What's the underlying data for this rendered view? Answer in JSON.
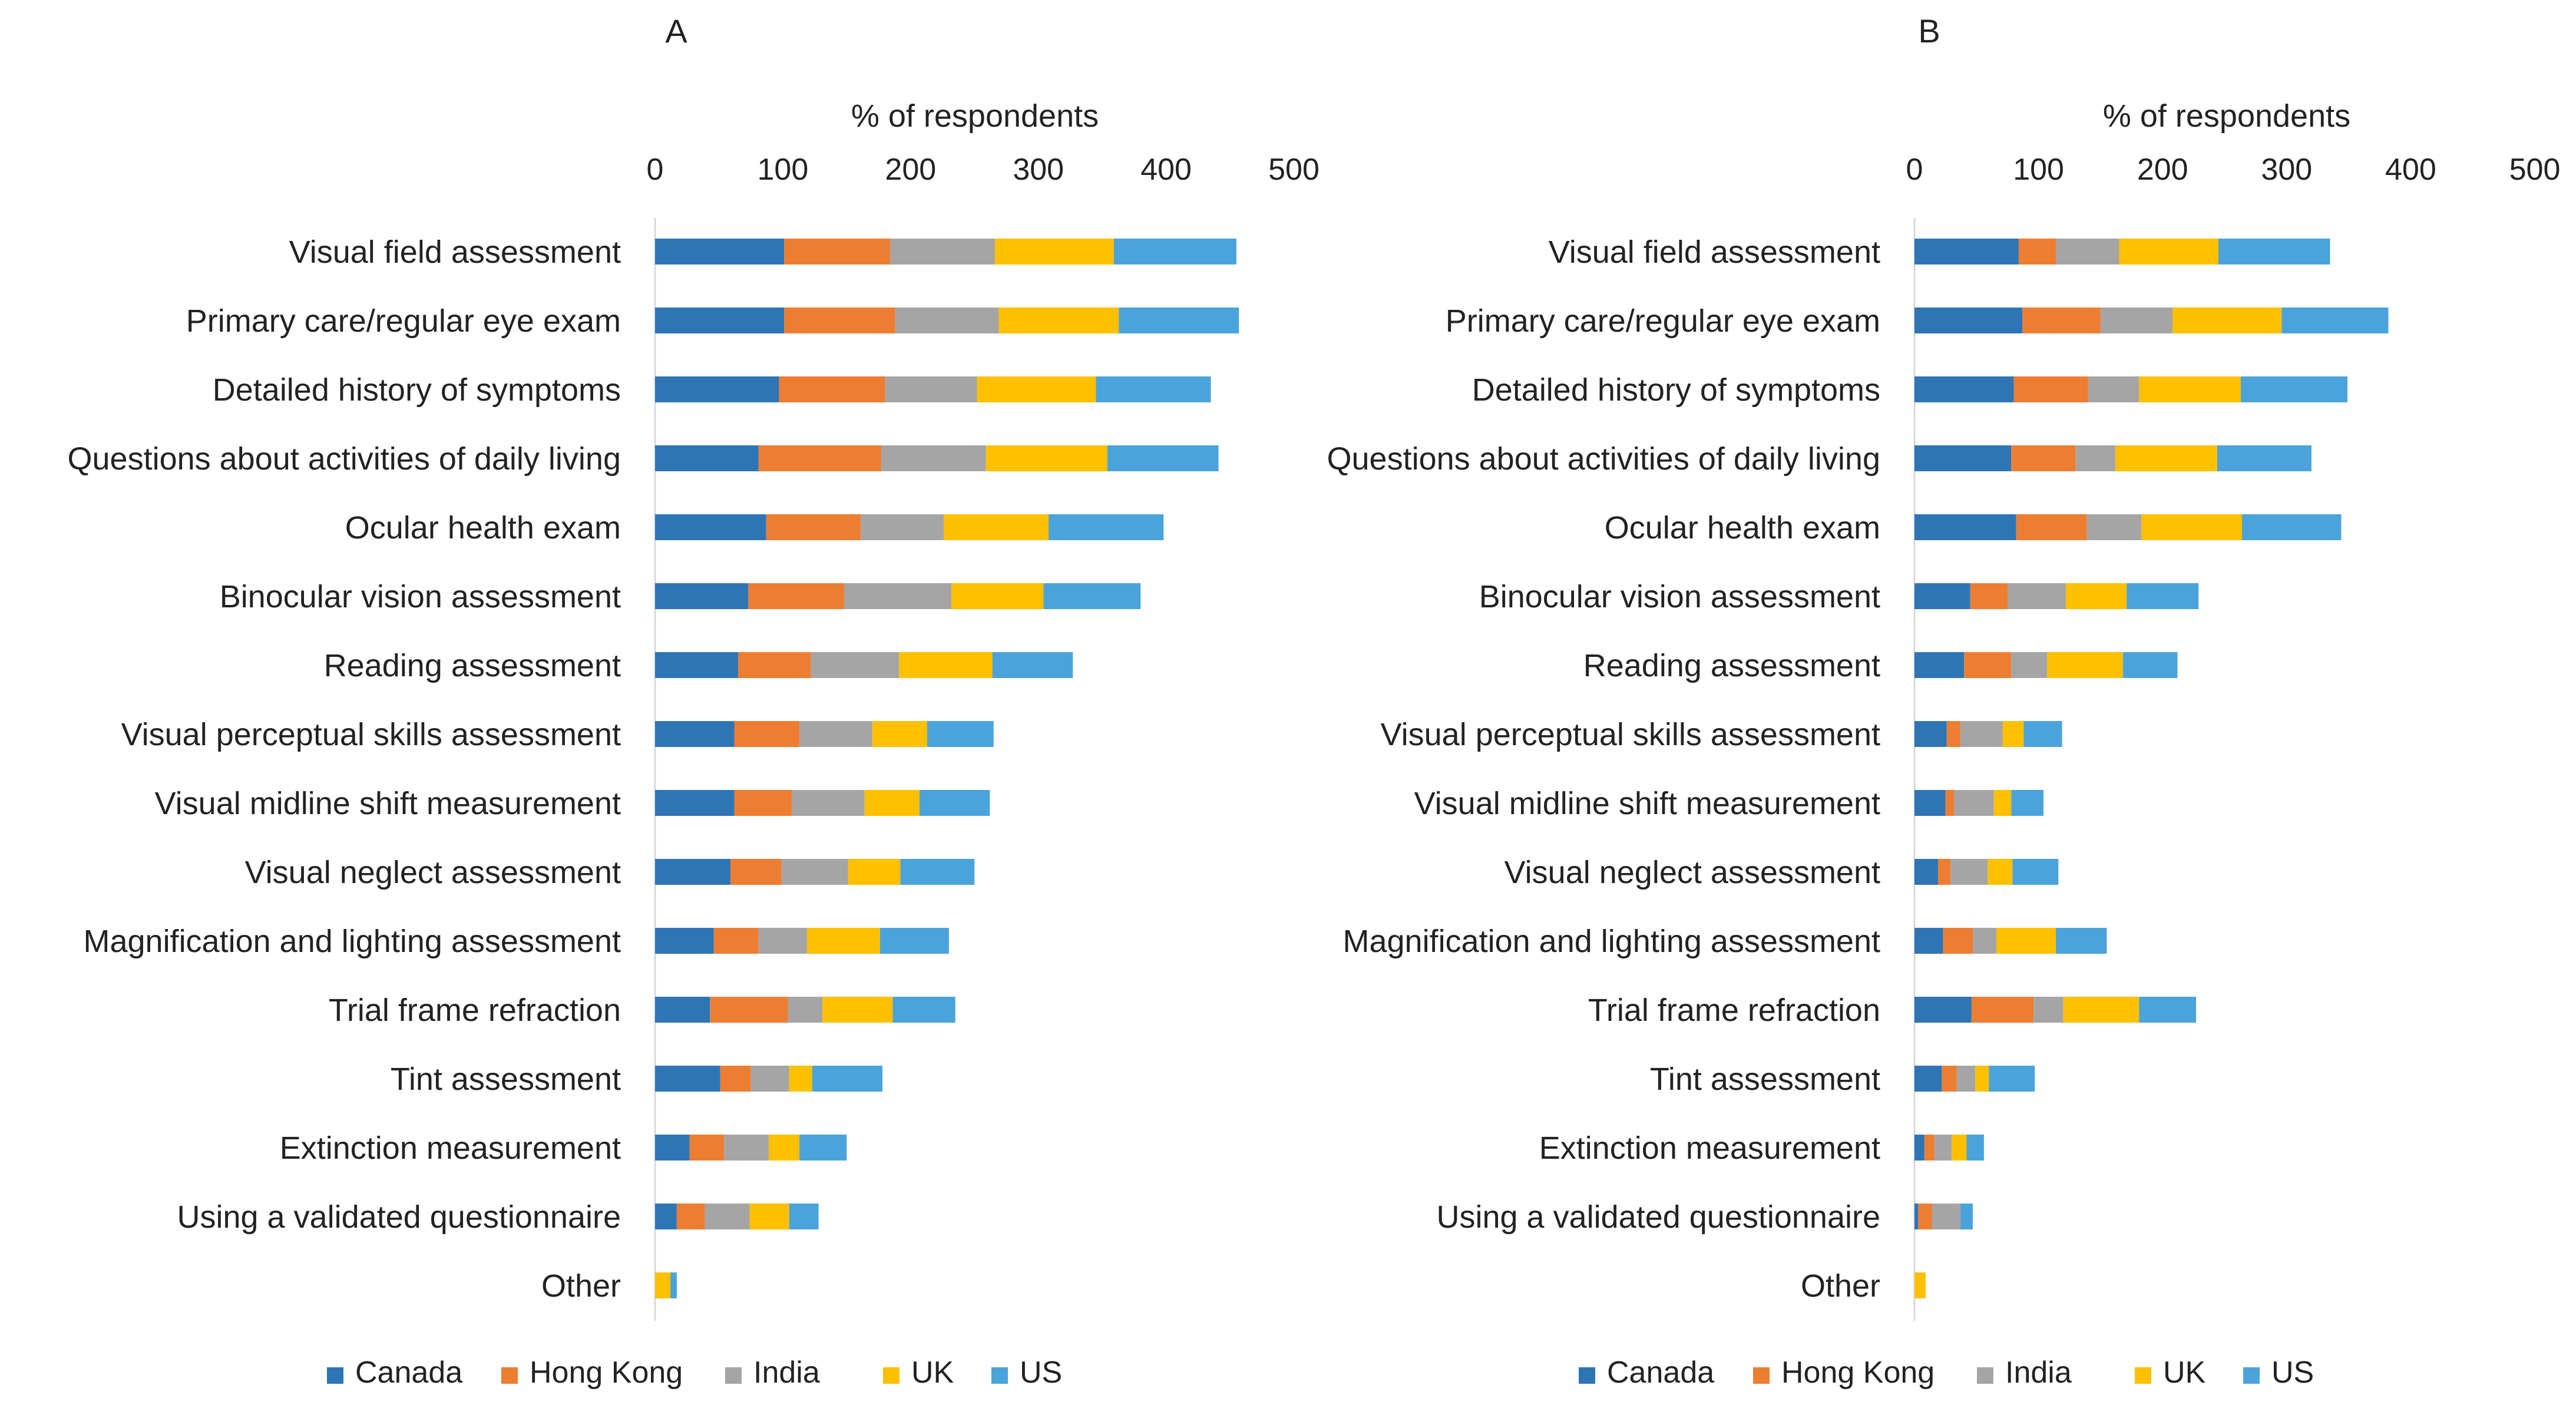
{
  "chart_data": [
    {
      "type": "bar",
      "orientation": "horizontal",
      "stacked": true,
      "panel_label": "A",
      "xlabel": "% of respondents",
      "xlim": [
        0,
        500
      ],
      "xticks": [
        0,
        100,
        200,
        300,
        400,
        500
      ],
      "grid": false,
      "legend": "bottom",
      "categories": [
        "Visual field assessment",
        "Primary care/regular eye exam",
        "Detailed history of symptoms",
        "Questions about activities of daily living",
        "Ocular health exam",
        "Binocular vision assessment",
        "Reading assessment",
        "Visual perceptual skills assessment",
        "Visual midline shift measurement",
        "Visual neglect assessment",
        "Magnification and lighting assessment",
        "Trial frame refraction",
        "Tint assessment",
        "Extinction measurement",
        "Using a validated questionnaire",
        "Other"
      ],
      "series": [
        {
          "name": "Canada",
          "values": [
            101,
            101,
            97,
            81,
            87,
            73,
            65,
            62,
            62,
            59,
            46,
            43,
            51,
            27,
            17,
            0
          ]
        },
        {
          "name": "Hong Kong",
          "values": [
            83,
            87,
            83,
            96,
            74,
            75,
            57,
            51,
            45,
            40,
            35,
            61,
            24,
            27,
            22,
            0
          ]
        },
        {
          "name": "India",
          "values": [
            82,
            81,
            72,
            82,
            65,
            84,
            69,
            57,
            57,
            52,
            38,
            27,
            30,
            35,
            35,
            0
          ]
        },
        {
          "name": "UK",
          "values": [
            93,
            94,
            93,
            95,
            82,
            72,
            73,
            43,
            43,
            41,
            57,
            55,
            18,
            24,
            31,
            12
          ]
        },
        {
          "name": "US",
          "values": [
            96,
            94,
            90,
            87,
            90,
            76,
            63,
            52,
            55,
            58,
            54,
            49,
            55,
            37,
            23,
            5
          ]
        }
      ]
    },
    {
      "type": "bar",
      "orientation": "horizontal",
      "stacked": true,
      "panel_label": "B",
      "xlabel": "% of respondents",
      "xlim": [
        0,
        500
      ],
      "xticks": [
        0,
        100,
        200,
        300,
        400,
        500
      ],
      "grid": false,
      "legend": "bottom",
      "categories": [
        "Visual field assessment",
        "Primary care/regular eye exam",
        "Detailed history of symptoms",
        "Questions about activities of daily living",
        "Ocular health exam",
        "Binocular vision assessment",
        "Reading assessment",
        "Visual perceptual skills assessment",
        "Visual midline shift measurement",
        "Visual neglect assessment",
        "Magnification and lighting assessment",
        "Trial frame refraction",
        "Tint assessment",
        "Extinction measurement",
        "Using a validated questionnaire",
        "Other"
      ],
      "series": [
        {
          "name": "Canada",
          "values": [
            84,
            87,
            80,
            78,
            82,
            45,
            40,
            26,
            25,
            19,
            23,
            46,
            22,
            8,
            3,
            0
          ]
        },
        {
          "name": "Hong Kong",
          "values": [
            30,
            63,
            60,
            52,
            57,
            30,
            38,
            11,
            7,
            10,
            24,
            50,
            12,
            8,
            11,
            0
          ]
        },
        {
          "name": "India",
          "values": [
            51,
            58,
            41,
            32,
            44,
            47,
            29,
            34,
            32,
            30,
            19,
            24,
            15,
            14,
            23,
            0
          ]
        },
        {
          "name": "UK",
          "values": [
            80,
            88,
            82,
            82,
            81,
            49,
            61,
            17,
            14,
            20,
            48,
            61,
            11,
            12,
            0,
            9
          ]
        },
        {
          "name": "US",
          "values": [
            90,
            86,
            86,
            76,
            80,
            58,
            44,
            31,
            26,
            37,
            41,
            46,
            37,
            14,
            10,
            0
          ]
        }
      ]
    }
  ],
  "series_colors": {
    "Canada": "#2e75b6",
    "Hong Kong": "#ed7d31",
    "India": "#a5a5a5",
    "UK": "#ffc000",
    "US": "#4ba3db"
  }
}
